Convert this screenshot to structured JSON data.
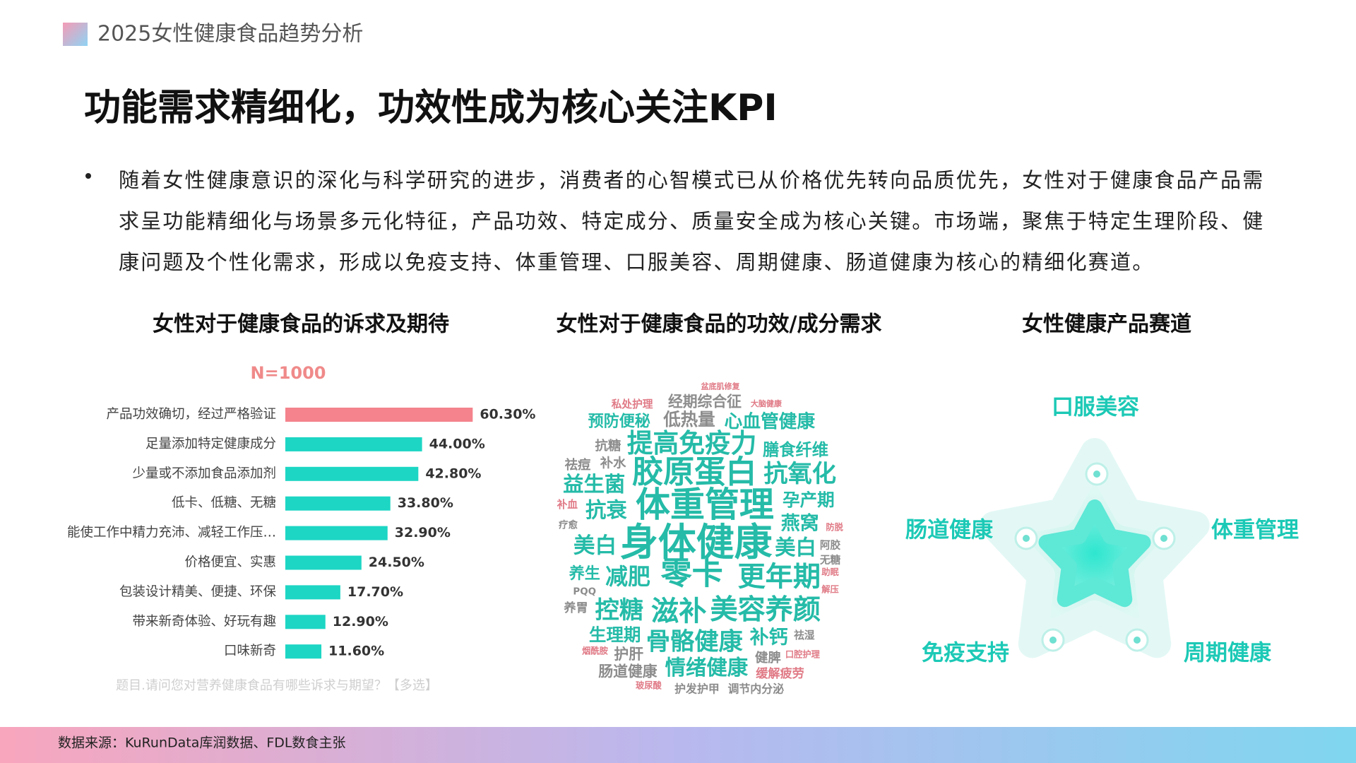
{
  "header": {
    "title": "2025女性健康食品趋势分析"
  },
  "title": "功能需求精细化，功效性成为核心关注KPI",
  "bullet": "随着女性健康意识的深化与科学研究的进步，消费者的心智模式已从价格优先转向品质优先，女性对于健康食品产品需求呈功能精细化与场景多元化特征，产品功效、特定成分、质量安全成为核心关键。市场端，聚焦于特定生理阶段、健康问题及个性化需求，形成以免疫支持、体重管理、口服美容、周期健康、肠道健康为核心的精细化赛道。",
  "chart_data": {
    "type": "bar",
    "title": "女性对于健康食品的诉求及期待",
    "subtitle": "N=1000",
    "categories": [
      "产品功效确切，经过严格验证",
      "足量添加特定健康成分",
      "少量或不添加食品添加剂",
      "低卡、低糖、无糖",
      "能使工作中精力充沛、减轻工作压…",
      "价格便宜、实惠",
      "包装设计精美、便捷、环保",
      "带来新奇体验、好玩有趣",
      "口味新奇"
    ],
    "values": [
      60.3,
      44,
      42.8,
      33.8,
      32.9,
      24.5,
      17.7,
      12.9,
      11.6
    ],
    "value_labels": [
      "60.30%",
      "44.00%",
      "42.80%",
      "33.80%",
      "32.90%",
      "24.50%",
      "17.70%",
      "12.90%",
      "11.60%"
    ],
    "colors": [
      "#f4838d",
      "#1dd6c4",
      "#1dd6c4",
      "#1dd6c4",
      "#1dd6c4",
      "#1dd6c4",
      "#1dd6c4",
      "#1dd6c4",
      "#1dd6c4"
    ],
    "note": "题目.请问您对营养健康食品有哪些诉求与期望？【多选】"
  },
  "word_cloud": {
    "title": "女性对于健康食品的功效/成分需求",
    "words": [
      "盆底肌修复",
      "私处护理",
      "经期综合征",
      "大脑健康",
      "预防便秘",
      "低热量",
      "心血管健康",
      "抗糖",
      "提高免疫力",
      "膳食纤维",
      "祛痘",
      "补水",
      "胶原蛋白",
      "抗氧化",
      "益生菌",
      "补血",
      "抗衰",
      "体重管理",
      "孕产期",
      "疗愈",
      "燕窝",
      "防脱",
      "美白",
      "身体健康",
      "美白",
      "阿胶",
      "无糖",
      "养生",
      "减肥",
      "零卡",
      "更年期",
      "助眠",
      "PQQ",
      "解压",
      "养胃",
      "控糖",
      "滋补",
      "美容养颜",
      "生理期",
      "骨骼健康",
      "补钙",
      "祛湿",
      "烟酰胺",
      "护肝",
      "健脾",
      "口腔护理",
      "肠道健康",
      "情绪健康",
      "缓解疲劳",
      "玻尿酸",
      "护发护甲",
      "调节内分泌"
    ]
  },
  "tracks": {
    "title": "女性健康产品赛道",
    "items": [
      "口服美容",
      "肠道健康",
      "体重管理",
      "免疫支持",
      "周期健康"
    ]
  },
  "source": "数据来源：KuRunData库润数据、FDL数食主张"
}
